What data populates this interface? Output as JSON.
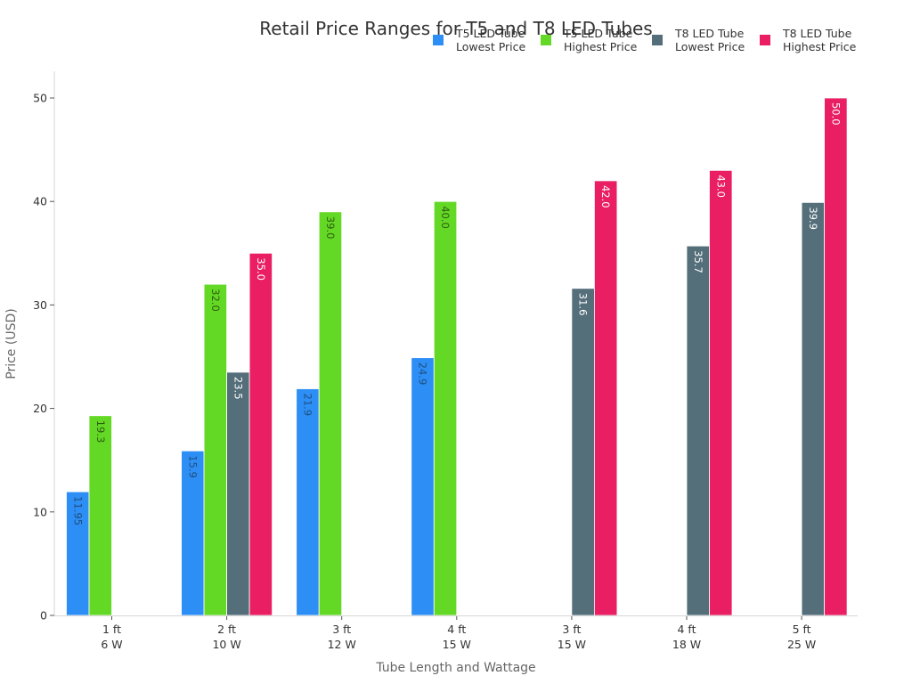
{
  "chart_data": {
    "type": "bar",
    "title": "Retail Price Ranges for T5 and T8 LED Tubes",
    "xlabel": "Tube Length and Wattage",
    "ylabel": "Price (USD)",
    "ylim": [
      0,
      52
    ],
    "yticks": [
      0,
      10,
      20,
      30,
      40,
      50
    ],
    "grid": false,
    "legend_position": "top-right",
    "categories": [
      [
        "1 ft",
        "6 W"
      ],
      [
        "2 ft",
        "10 W"
      ],
      [
        "3 ft",
        "12 W"
      ],
      [
        "4 ft",
        "15 W"
      ],
      [
        "3 ft",
        "15 W"
      ],
      [
        "4 ft",
        "18 W"
      ],
      [
        "5 ft",
        "25 W"
      ]
    ],
    "series": [
      {
        "name": "T5 LED Tube Lowest Price",
        "legend_lines": [
          "T5 LED Tube",
          "Lowest Price"
        ],
        "color": "#2d8ff5",
        "label_color": "#1f4f80",
        "values": [
          11.95,
          15.9,
          21.9,
          24.9,
          null,
          null,
          null
        ],
        "labels": [
          "11.95",
          "15.9",
          "21.9",
          "24.9",
          "",
          "",
          ""
        ]
      },
      {
        "name": "T5 LED Tube Highest Price",
        "legend_lines": [
          "T5 LED Tube",
          "Highest Price"
        ],
        "color": "#64d925",
        "label_color": "#2e5e12",
        "values": [
          19.3,
          32.0,
          39.0,
          40.0,
          null,
          null,
          null
        ],
        "labels": [
          "19.3",
          "32.0",
          "39.0",
          "40.0",
          "",
          "",
          ""
        ]
      },
      {
        "name": "T8 LED Tube Lowest Price",
        "legend_lines": [
          "T8 LED Tube",
          "Lowest Price"
        ],
        "color": "#546e7a",
        "label_color": "#ffffff",
        "values": [
          null,
          23.5,
          null,
          null,
          31.6,
          35.7,
          39.9
        ],
        "labels": [
          "",
          "23.5",
          "",
          "",
          "31.6",
          "35.7",
          "39.9"
        ]
      },
      {
        "name": "T8 LED Tube Highest Price",
        "legend_lines": [
          "T8 LED Tube",
          "Highest Price"
        ],
        "color": "#e91e63",
        "label_color": "#ffffff",
        "values": [
          null,
          35.0,
          null,
          null,
          42.0,
          43.0,
          50.0
        ],
        "labels": [
          "",
          "35.0",
          "",
          "",
          "42.0",
          "43.0",
          "50.0"
        ]
      }
    ]
  }
}
